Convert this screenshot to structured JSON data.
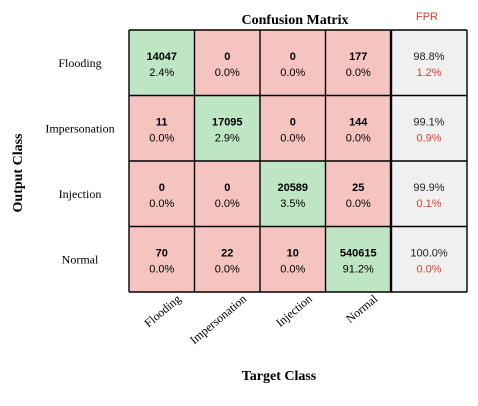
{
  "chart_data": {
    "type": "heatmap",
    "title": "Confusion Matrix",
    "xlabel": "Target Class",
    "ylabel": "Output Class",
    "classes": [
      "Flooding",
      "Impersonation",
      "Injection",
      "Normal"
    ],
    "counts": [
      [
        14047,
        0,
        0,
        177
      ],
      [
        11,
        17095,
        0,
        144
      ],
      [
        0,
        0,
        20589,
        25
      ],
      [
        70,
        22,
        10,
        540615
      ]
    ],
    "percents": [
      [
        "2.4%",
        "0.0%",
        "0.0%",
        "0.0%"
      ],
      [
        "0.0%",
        "2.9%",
        "0.0%",
        "0.0%"
      ],
      [
        "0.0%",
        "0.0%",
        "3.5%",
        "0.0%"
      ],
      [
        "0.0%",
        "0.0%",
        "0.0%",
        "91.2%"
      ]
    ],
    "row_summary": {
      "header": "FPR",
      "precision": [
        "98.8%",
        "99.1%",
        "99.9%",
        "100.0%"
      ],
      "fpr": [
        "1.2%",
        "0.9%",
        "0.1%",
        "0.0%"
      ]
    },
    "colors": {
      "diagonal": "#bfe6c4",
      "off_diagonal": "#f6c4c0",
      "summary": "#f0f0f0",
      "grid": "#000000",
      "fpr_text": "#e03c31"
    }
  }
}
